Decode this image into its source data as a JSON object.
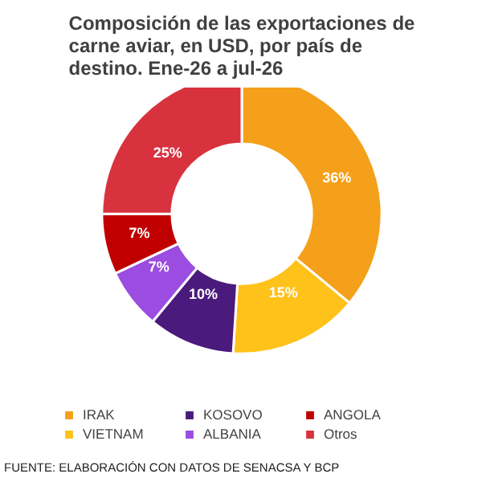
{
  "chart_data": {
    "type": "donut",
    "title": "Composición de las exportaciones de carne aviar, en USD, por país de destino. Ene-26 a jul-26",
    "categories": [
      "IRAK",
      "VIETNAM",
      "KOSOVO",
      "ALBANIA",
      "ANGOLA",
      "Otros"
    ],
    "values": [
      36,
      15,
      10,
      7,
      7,
      25
    ],
    "colors": [
      "#f5a01a",
      "#ffc21a",
      "#4a1a7c",
      "#9a4de0",
      "#c00000",
      "#d8323f"
    ],
    "value_labels": [
      "36%",
      "15%",
      "10%",
      "7%",
      "7%",
      "25%"
    ],
    "legend": "bottom",
    "annotations": [
      "FUENTE: ELABORACIÓN CON DATOS DE SENACSA Y BCP"
    ]
  }
}
